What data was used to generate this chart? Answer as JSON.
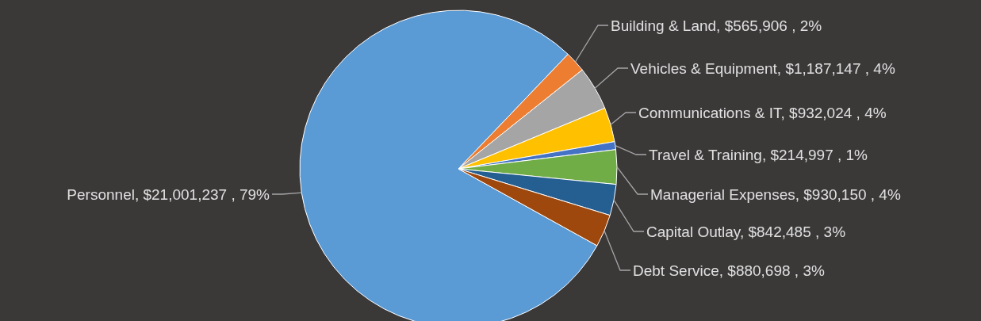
{
  "chart_data": {
    "type": "pie",
    "categories": [
      "Personnel",
      "Building & Land",
      "Vehicles & Equipment",
      "Communications & IT",
      "Travel & Training",
      "Managerial Expenses",
      "Capital Outlay",
      "Debt Service"
    ],
    "values": [
      21001237,
      565906,
      1187147,
      932024,
      214997,
      930150,
      842485,
      880698
    ],
    "value_labels": [
      "$21,001,237 , 79%",
      "$565,906 , 2%",
      "$1,187,147 , 4%",
      "$932,024 , 4%",
      "$214,997 , 1%",
      "$930,150 , 4%",
      "$842,485 , 3%",
      "$880,698 , 3%"
    ],
    "colors": [
      "#5b9bd5",
      "#ed7d31",
      "#a5a5a5",
      "#ffc000",
      "#4472c4",
      "#70ad47",
      "#255e91",
      "#9e480e"
    ]
  }
}
